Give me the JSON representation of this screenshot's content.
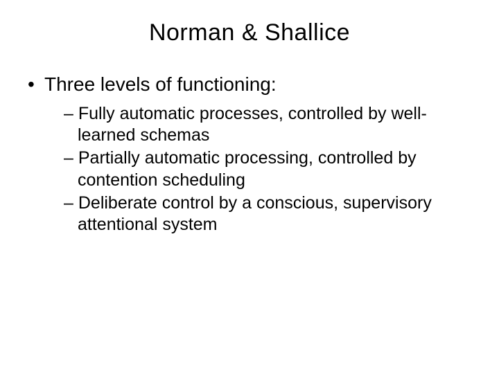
{
  "colors": {
    "background": "#ffffff",
    "text": "#000000"
  },
  "typography": {
    "title_fontsize": 34,
    "level1_fontsize": 28,
    "level2_fontsize": 25,
    "font_family": "Verdana"
  },
  "slide": {
    "title": "Norman & Shallice",
    "bullet_char": "•",
    "dash_char": "–",
    "level1_text": "Three levels of functioning:",
    "items": [
      {
        "lead": "Fully automatic processes",
        "rest": ", controlled by well-learned schemas"
      },
      {
        "lead": "Partially automatic processing",
        "rest": ", controlled by contention scheduling"
      },
      {
        "lead": "Deliberate control",
        "rest": " by a conscious, supervisory attentional system"
      }
    ]
  }
}
